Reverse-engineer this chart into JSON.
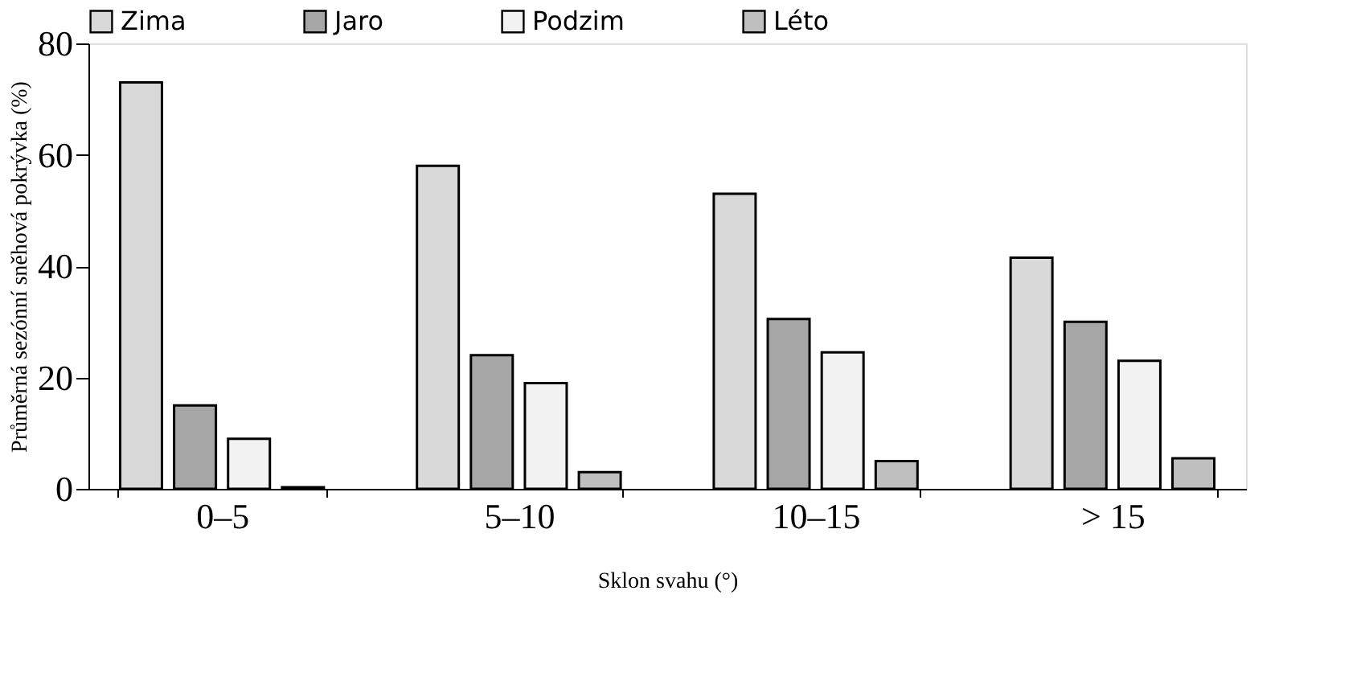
{
  "chart_data": {
    "type": "bar",
    "xlabel": "Sklon svahu (°)",
    "ylabel": "Průměrná sezónní sněhová pokrývka (%)",
    "categories": [
      "0–5",
      "5–10",
      "10–15",
      "> 15"
    ],
    "series": [
      {
        "name": "Zima",
        "color": "#d9d9d9",
        "values": [
          73,
          58,
          53,
          41.5
        ]
      },
      {
        "name": "Jaro",
        "color": "#a6a6a6",
        "values": [
          15,
          24,
          30.5,
          30
        ]
      },
      {
        "name": "Podzim",
        "color": "#f2f2f2",
        "values": [
          9,
          19,
          24.5,
          23
        ]
      },
      {
        "name": "Léto",
        "color": "#bfbfbf",
        "values": [
          0.3,
          3,
          5,
          5.5
        ]
      }
    ],
    "ylim": [
      0,
      80
    ],
    "yticks": [
      0,
      20,
      40,
      60,
      80
    ],
    "grid": false,
    "legend": "top"
  }
}
